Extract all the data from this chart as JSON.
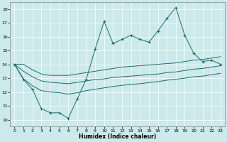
{
  "xlabel": "Humidex (Indice chaleur)",
  "bg_color": "#cce9eb",
  "grid_color": "#b8d8da",
  "line_color": "#1a6e6a",
  "xlim": [
    -0.5,
    23.5
  ],
  "ylim": [
    9.5,
    18.5
  ],
  "xticks": [
    0,
    1,
    2,
    3,
    4,
    5,
    6,
    7,
    8,
    9,
    10,
    11,
    12,
    13,
    14,
    15,
    16,
    17,
    18,
    19,
    20,
    21,
    22,
    23
  ],
  "yticks": [
    10,
    11,
    12,
    13,
    14,
    15,
    16,
    17,
    18
  ],
  "main_line": [
    14.0,
    12.9,
    12.2,
    10.8,
    10.5,
    10.5,
    10.1,
    11.5,
    12.9,
    15.1,
    17.1,
    15.5,
    15.8,
    16.1,
    15.8,
    15.6,
    16.4,
    17.3,
    18.1,
    16.1,
    14.8,
    14.2,
    14.3,
    14.0
  ],
  "upper_line": [
    14.0,
    14.0,
    13.6,
    13.3,
    13.2,
    13.2,
    13.2,
    13.3,
    13.4,
    13.5,
    13.6,
    13.7,
    13.8,
    13.85,
    13.9,
    13.95,
    14.0,
    14.05,
    14.1,
    14.2,
    14.3,
    14.35,
    14.45,
    14.55
  ],
  "middle_line": [
    14.0,
    13.5,
    13.1,
    12.8,
    12.7,
    12.65,
    12.6,
    12.7,
    12.8,
    12.9,
    12.95,
    13.05,
    13.1,
    13.15,
    13.2,
    13.25,
    13.3,
    13.4,
    13.45,
    13.55,
    13.65,
    13.7,
    13.8,
    13.9
  ],
  "lower_line": [
    14.0,
    12.95,
    12.45,
    12.1,
    12.0,
    11.95,
    11.85,
    11.95,
    12.1,
    12.2,
    12.3,
    12.4,
    12.48,
    12.55,
    12.6,
    12.68,
    12.75,
    12.85,
    12.92,
    13.0,
    13.1,
    13.15,
    13.25,
    13.35
  ]
}
